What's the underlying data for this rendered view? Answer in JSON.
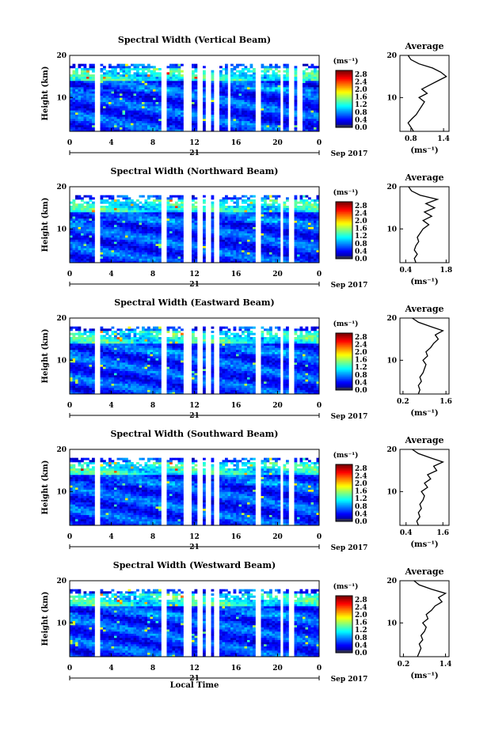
{
  "chart_data": [
    {
      "type": "heatmap",
      "title": "Spectral Width (Vertical Beam)",
      "ylabel": "Height (km)",
      "xticks": [
        "0",
        "4",
        "8",
        "12",
        "16",
        "20",
        "0"
      ],
      "date_label": "21",
      "month_label": "Sep 2017",
      "xlim": [
        0,
        24
      ],
      "ylim": [
        2,
        20
      ],
      "yticks": [
        "20",
        "10"
      ],
      "colorbar": {
        "unit": "(ms⁻¹)",
        "ticks": [
          "2.8",
          "2.4",
          "2.0",
          "1.6",
          "1.2",
          "0.8",
          "0.4",
          "0.0"
        ],
        "range": [
          0.0,
          3.0
        ]
      },
      "gaps_hours": [
        [
          2.4,
          2.9
        ],
        [
          8.8,
          9.2
        ],
        [
          11.0,
          11.6
        ],
        [
          12.2,
          12.9
        ],
        [
          13.2,
          13.5
        ],
        [
          13.8,
          14.4
        ],
        [
          15.2,
          15.5
        ],
        [
          18.0,
          18.3
        ],
        [
          20.3,
          20.6
        ],
        [
          21.2,
          21.5
        ],
        [
          22.0,
          22.3
        ]
      ],
      "average": {
        "title": "Average",
        "xlabel": "(ms⁻¹)",
        "xticks": [
          "0.8",
          "1.4"
        ],
        "xlim": [
          0.6,
          1.5
        ],
        "height_km": [
          2,
          3,
          4,
          5,
          6,
          7,
          8,
          9,
          10,
          11,
          12,
          13,
          14,
          15,
          16,
          17,
          18,
          19,
          20
        ],
        "values": [
          0.85,
          0.8,
          0.75,
          0.82,
          0.9,
          0.95,
          1.0,
          1.05,
          0.95,
          1.1,
          1.0,
          1.15,
          1.3,
          1.45,
          1.35,
          1.2,
          0.95,
          0.8,
          0.75
        ]
      }
    },
    {
      "type": "heatmap",
      "title": "Spectral Width (Northward Beam)",
      "ylabel": "Height (km)",
      "xticks": [
        "0",
        "4",
        "8",
        "12",
        "16",
        "20",
        "0"
      ],
      "date_label": "21",
      "month_label": "Sep 2017",
      "xlim": [
        0,
        24
      ],
      "ylim": [
        2,
        20
      ],
      "yticks": [
        "20",
        "10"
      ],
      "colorbar": {
        "unit": "(ms⁻¹)",
        "ticks": [
          "2.8",
          "2.4",
          "2.0",
          "1.6",
          "1.2",
          "0.8",
          "0.4",
          "0.0"
        ],
        "range": [
          0.0,
          3.0
        ]
      },
      "gaps_hours": [
        [
          2.4,
          2.9
        ],
        [
          8.8,
          9.2
        ],
        [
          11.0,
          11.6
        ],
        [
          12.2,
          12.9
        ],
        [
          13.2,
          13.5
        ],
        [
          13.8,
          14.4
        ],
        [
          18.0,
          18.3
        ],
        [
          20.3,
          20.6
        ],
        [
          21.2,
          21.5
        ]
      ],
      "average": {
        "title": "Average",
        "xlabel": "(ms⁻¹)",
        "xticks": [
          "0.4",
          "1.8"
        ],
        "xlim": [
          0.2,
          1.9
        ],
        "height_km": [
          2,
          3,
          4,
          5,
          6,
          7,
          8,
          9,
          10,
          11,
          12,
          13,
          14,
          15,
          16,
          17,
          18,
          19,
          20
        ],
        "values": [
          0.75,
          0.7,
          0.8,
          0.7,
          0.75,
          0.85,
          0.8,
          0.9,
          1.0,
          1.2,
          1.0,
          1.3,
          1.05,
          1.4,
          1.1,
          1.5,
          0.9,
          0.6,
          0.5
        ]
      }
    },
    {
      "type": "heatmap",
      "title": "Spectral Width (Eastward Beam)",
      "ylabel": "Height (km)",
      "xticks": [
        "0",
        "4",
        "8",
        "12",
        "16",
        "20",
        "0"
      ],
      "date_label": "21",
      "month_label": "Sep 2017",
      "xlim": [
        0,
        24
      ],
      "ylim": [
        2,
        20
      ],
      "yticks": [
        "20",
        "10"
      ],
      "colorbar": {
        "unit": "(ms⁻¹)",
        "ticks": [
          "2.8",
          "2.4",
          "2.0",
          "1.6",
          "1.2",
          "0.8",
          "0.4",
          "0.0"
        ],
        "range": [
          0.0,
          3.0
        ]
      },
      "gaps_hours": [
        [
          2.4,
          2.9
        ],
        [
          8.8,
          9.2
        ],
        [
          11.0,
          11.6
        ],
        [
          12.2,
          12.9
        ],
        [
          13.2,
          13.5
        ],
        [
          13.8,
          14.4
        ],
        [
          18.0,
          18.3
        ],
        [
          20.3,
          20.6
        ],
        [
          21.2,
          21.5
        ]
      ],
      "average": {
        "title": "Average",
        "xlabel": "(ms⁻¹)",
        "xticks": [
          "0.2",
          "1.6"
        ],
        "xlim": [
          0.1,
          1.7
        ],
        "height_km": [
          2,
          3,
          4,
          5,
          6,
          7,
          8,
          9,
          10,
          11,
          12,
          13,
          14,
          15,
          16,
          17,
          18,
          19,
          20
        ],
        "values": [
          0.7,
          0.75,
          0.7,
          0.8,
          0.75,
          0.85,
          0.9,
          0.95,
          0.85,
          1.0,
          0.95,
          1.1,
          1.2,
          1.35,
          1.25,
          1.5,
          1.1,
          0.7,
          0.5
        ]
      }
    },
    {
      "type": "heatmap",
      "title": "Spectral Width (Southward Beam)",
      "ylabel": "Height (km)",
      "xticks": [
        "0",
        "4",
        "8",
        "12",
        "16",
        "20",
        "0"
      ],
      "date_label": "21",
      "month_label": "Sep 2017",
      "xlim": [
        0,
        24
      ],
      "ylim": [
        2,
        20
      ],
      "yticks": [
        "20",
        "10"
      ],
      "colorbar": {
        "unit": "(ms⁻¹)",
        "ticks": [
          "2.8",
          "2.4",
          "2.0",
          "1.6",
          "1.2",
          "0.8",
          "0.4",
          "0.0"
        ],
        "range": [
          0.0,
          3.0
        ]
      },
      "gaps_hours": [
        [
          2.4,
          2.9
        ],
        [
          8.8,
          9.2
        ],
        [
          11.0,
          11.6
        ],
        [
          12.2,
          12.9
        ],
        [
          13.2,
          13.5
        ],
        [
          13.8,
          14.4
        ],
        [
          18.0,
          18.3
        ],
        [
          20.3,
          20.6
        ],
        [
          21.2,
          21.5
        ]
      ],
      "average": {
        "title": "Average",
        "xlabel": "(ms⁻¹)",
        "xticks": [
          "0.4",
          "1.6"
        ],
        "xlim": [
          0.2,
          1.8
        ],
        "height_km": [
          2,
          3,
          4,
          5,
          6,
          7,
          8,
          9,
          10,
          11,
          12,
          13,
          14,
          15,
          16,
          17,
          18,
          19,
          20
        ],
        "values": [
          0.8,
          0.75,
          0.85,
          0.8,
          0.9,
          0.85,
          0.95,
          1.0,
          0.9,
          1.1,
          1.0,
          1.2,
          1.1,
          1.4,
          1.3,
          1.6,
          1.2,
          0.8,
          0.6
        ]
      }
    },
    {
      "type": "heatmap",
      "title": "Spectral Width (Westward Beam)",
      "ylabel": "Height (km)",
      "xlabel": "Local Time",
      "xticks": [
        "0",
        "4",
        "8",
        "12",
        "16",
        "20",
        "0"
      ],
      "date_label": "21",
      "month_label": "Sep 2017",
      "xlim": [
        0,
        24
      ],
      "ylim": [
        2,
        20
      ],
      "yticks": [
        "20",
        "10"
      ],
      "colorbar": {
        "unit": "(ms⁻¹)",
        "ticks": [
          "2.8",
          "2.4",
          "2.0",
          "1.6",
          "1.2",
          "0.8",
          "0.4",
          "0.0"
        ],
        "range": [
          0.0,
          3.0
        ]
      },
      "gaps_hours": [
        [
          2.4,
          2.9
        ],
        [
          8.8,
          9.2
        ],
        [
          11.0,
          11.6
        ],
        [
          12.2,
          12.9
        ],
        [
          13.2,
          13.5
        ],
        [
          13.8,
          14.4
        ],
        [
          18.0,
          18.3
        ],
        [
          20.3,
          20.6
        ],
        [
          21.2,
          21.5
        ]
      ],
      "average": {
        "title": "Average",
        "xlabel": "(ms⁻¹)",
        "xticks": [
          "0.2",
          "1.4"
        ],
        "xlim": [
          0.1,
          1.5
        ],
        "height_km": [
          2,
          3,
          4,
          5,
          6,
          7,
          8,
          9,
          10,
          11,
          12,
          13,
          14,
          15,
          16,
          17,
          18,
          19,
          20
        ],
        "values": [
          0.6,
          0.65,
          0.7,
          0.65,
          0.75,
          0.7,
          0.8,
          0.85,
          0.75,
          0.9,
          0.85,
          1.0,
          1.1,
          1.3,
          1.2,
          1.4,
          1.0,
          0.65,
          0.5
        ]
      }
    }
  ]
}
